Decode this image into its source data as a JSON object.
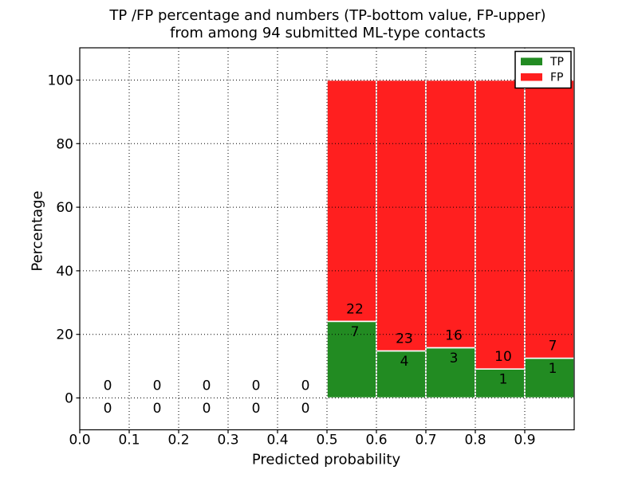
{
  "chart_data": {
    "type": "bar",
    "stacked": true,
    "title_line1": "TP /FP percentage and numbers (TP-bottom value, FP-upper)",
    "title_line2": "from among 94 submitted ML-type contacts",
    "xlabel": "Predicted probability",
    "ylabel": "Percentage",
    "total_contacts": 94,
    "xlim": [
      0.0,
      1.0
    ],
    "ylim": [
      -10,
      110
    ],
    "xticks": [
      "0.0",
      "0.1",
      "0.2",
      "0.3",
      "0.4",
      "0.5",
      "0.6",
      "0.7",
      "0.8",
      "0.9"
    ],
    "yticks": [
      "0",
      "20",
      "40",
      "60",
      "80",
      "100"
    ],
    "grid": "dotted",
    "categories": [
      "0.0-0.1",
      "0.1-0.2",
      "0.2-0.3",
      "0.3-0.4",
      "0.4-0.5",
      "0.5-0.6",
      "0.6-0.7",
      "0.7-0.8",
      "0.8-0.9",
      "0.9-1.0"
    ],
    "series": [
      {
        "name": "TP",
        "color": "#228b22",
        "counts": [
          0,
          0,
          0,
          0,
          0,
          7,
          4,
          3,
          1,
          1
        ],
        "percent": [
          0,
          0,
          0,
          0,
          0,
          24.1,
          14.8,
          15.8,
          9.1,
          12.5
        ]
      },
      {
        "name": "FP",
        "color": "#ff1f1f",
        "counts": [
          0,
          0,
          0,
          0,
          0,
          22,
          23,
          16,
          10,
          7
        ],
        "percent": [
          0,
          0,
          0,
          0,
          0,
          75.9,
          85.2,
          84.2,
          90.9,
          87.5
        ]
      }
    ],
    "legend": {
      "position": "upper right",
      "entries": [
        {
          "label": "TP"
        },
        {
          "label": "FP"
        }
      ]
    },
    "bar_edge_color": "#ffffff"
  }
}
